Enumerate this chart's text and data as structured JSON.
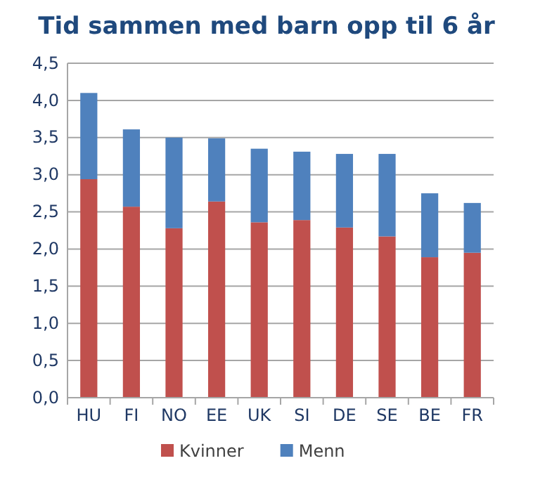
{
  "chart_data": {
    "type": "bar",
    "title": "Tid sammen med barn opp til 6 år",
    "categories": [
      "HU",
      "FI",
      "NO",
      "EE",
      "UK",
      "SI",
      "DE",
      "SE",
      "BE",
      "FR"
    ],
    "stacked": true,
    "series": [
      {
        "name": "Kvinner",
        "color": "#c0504d",
        "values": [
          2.94,
          2.57,
          2.28,
          2.64,
          2.36,
          2.39,
          2.29,
          2.17,
          1.89,
          1.95
        ]
      },
      {
        "name": "Menn",
        "color": "#4f81bd",
        "values": [
          1.16,
          1.04,
          1.22,
          0.85,
          0.99,
          0.92,
          0.99,
          1.11,
          0.86,
          0.67
        ]
      }
    ],
    "ylim": [
      0,
      4.5
    ],
    "yticks": [
      {
        "value": 0,
        "label": "0,0"
      },
      {
        "value": 0.5,
        "label": "0,5"
      },
      {
        "value": 1,
        "label": "1,0"
      },
      {
        "value": 1.5,
        "label": "1,5"
      },
      {
        "value": 2,
        "label": "2,0"
      },
      {
        "value": 2.5,
        "label": "2,5"
      },
      {
        "value": 3,
        "label": "3,0"
      },
      {
        "value": 3.5,
        "label": "3,5"
      },
      {
        "value": 4,
        "label": "4,0"
      },
      {
        "value": 4.5,
        "label": "4,5"
      }
    ],
    "grid": "y",
    "legend": "bottom"
  }
}
